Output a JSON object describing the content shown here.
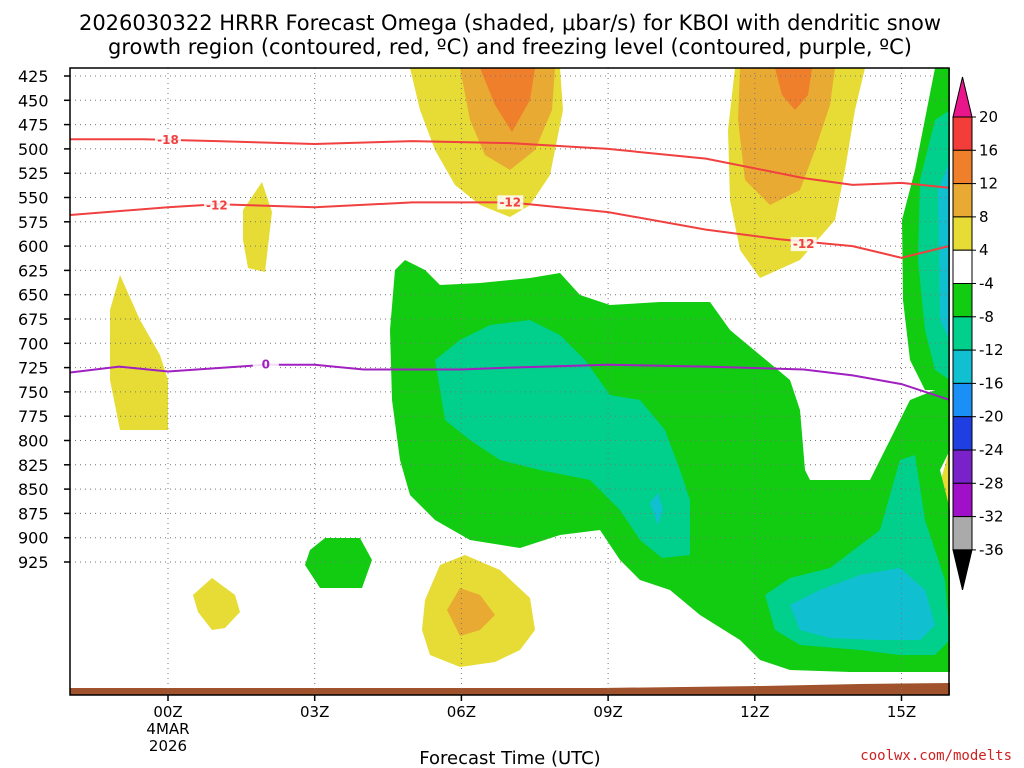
{
  "chart_data": {
    "type": "heatmap",
    "title_line1": "2026030322 HRRR Forecast Omega (shaded, μbar/s) for KBOI with dendritic snow",
    "title_line2": "growth region (contoured, red, ºC) and freezing level (contoured, purple, ºC)",
    "xlabel": "Forecast Time (UTC)",
    "x_ticks": [
      {
        "label": "00Z",
        "hour": 0,
        "sub1": "4MAR",
        "sub2": "2026"
      },
      {
        "label": "03Z",
        "hour": 3
      },
      {
        "label": "06Z",
        "hour": 6
      },
      {
        "label": "09Z",
        "hour": 9
      },
      {
        "label": "12Z",
        "hour": 12
      },
      {
        "label": "15Z",
        "hour": 15
      }
    ],
    "x_range_hours": [
      -2,
      16
    ],
    "y_levels": [
      "425",
      "450",
      "475",
      "500",
      "525",
      "550",
      "575",
      "600",
      "625",
      "650",
      "675",
      "700",
      "725",
      "750",
      "775",
      "800",
      "825",
      "850",
      "875",
      "900",
      "925"
    ],
    "grid": true,
    "colorbar": {
      "ticks": [
        "20",
        "16",
        "12",
        "8",
        "4",
        "-4",
        "-8",
        "-12",
        "-16",
        "-20",
        "-24",
        "-28",
        "-32",
        "-36"
      ],
      "colors": [
        "#e8168a",
        "#f23d3a",
        "#ef7f2a",
        "#e9aa33",
        "#e6dc35",
        "#ffffff",
        "#11cc11",
        "#00d08c",
        "#10c0d0",
        "#1a8ff5",
        "#1f3fe2",
        "#7a22c9",
        "#a010c8",
        "#aaaaaa",
        "#000000"
      ]
    },
    "series": [
      {
        "name": "-18",
        "color": "#f04040",
        "points": [
          [
            -2,
            490
          ],
          [
            -0.5,
            490
          ],
          [
            1,
            492
          ],
          [
            3,
            495
          ],
          [
            5,
            492
          ],
          [
            7,
            494
          ],
          [
            9,
            500
          ],
          [
            11,
            510
          ],
          [
            13,
            530
          ],
          [
            14,
            537
          ],
          [
            15,
            535
          ],
          [
            16,
            540
          ]
        ],
        "labels": [
          {
            "text": "-18",
            "hour": 0,
            "p": 491
          }
        ]
      },
      {
        "name": "-12",
        "color": "#f04040",
        "points": [
          [
            -2,
            568
          ],
          [
            0,
            560
          ],
          [
            1,
            557
          ],
          [
            3,
            560
          ],
          [
            5,
            555
          ],
          [
            7,
            555
          ],
          [
            9,
            565
          ],
          [
            11,
            583
          ],
          [
            12.5,
            593
          ],
          [
            14,
            600
          ],
          [
            15,
            612
          ],
          [
            16,
            600
          ]
        ],
        "labels": [
          {
            "text": "-12",
            "hour": 1,
            "p": 558
          },
          {
            "text": "-12",
            "hour": 7,
            "p": 555
          },
          {
            "text": "-12",
            "hour": 13,
            "p": 598
          }
        ]
      },
      {
        "name": "0",
        "color": "#a020c0",
        "points": [
          [
            -2,
            730
          ],
          [
            -1,
            724
          ],
          [
            0,
            729
          ],
          [
            2,
            722
          ],
          [
            3,
            722
          ],
          [
            4,
            727
          ],
          [
            6,
            727
          ],
          [
            7,
            725
          ],
          [
            9,
            722
          ],
          [
            11,
            724
          ],
          [
            13,
            727
          ],
          [
            14,
            733
          ],
          [
            15,
            742
          ],
          [
            16,
            758
          ]
        ],
        "labels": [
          {
            "text": "0",
            "hour": 2,
            "p": 722
          }
        ]
      }
    ]
  },
  "credit": "coolwx.com/modelts"
}
